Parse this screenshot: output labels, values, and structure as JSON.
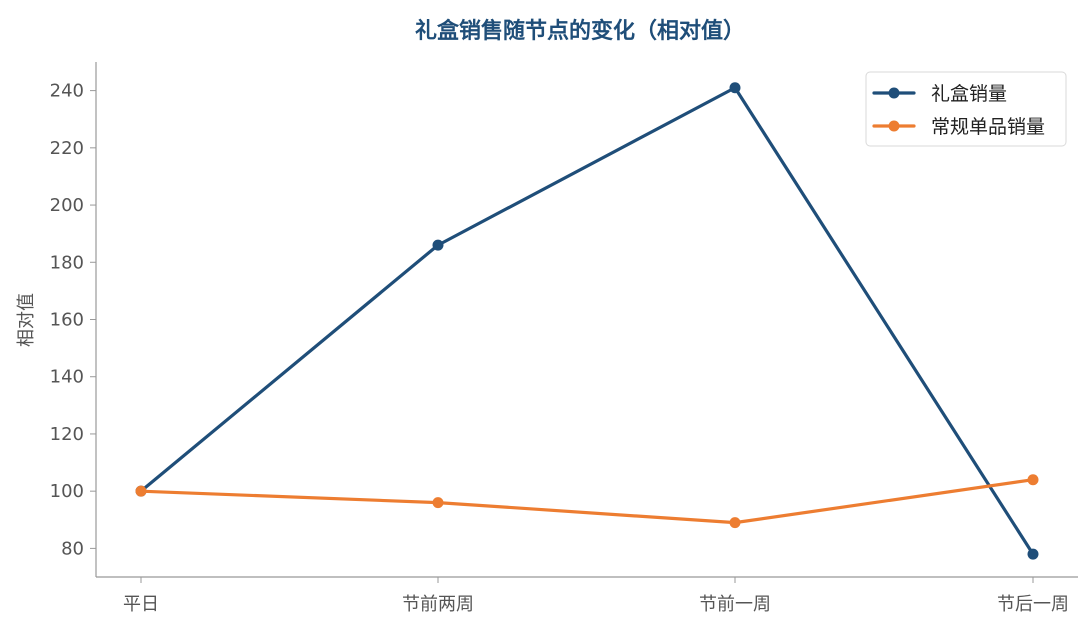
{
  "chart_data": {
    "type": "line",
    "title": "礼盒销售随节点的变化（相对值）",
    "xlabel": "",
    "ylabel": "相对值",
    "categories": [
      "平日",
      "节前两周",
      "节前一周",
      "节后一周"
    ],
    "series": [
      {
        "name": "礼盒销量",
        "values": [
          100,
          186,
          241,
          78
        ],
        "color": "#1f4e79"
      },
      {
        "name": "常规单品销量",
        "values": [
          100,
          96,
          89,
          104
        ],
        "color": "#ed7d31"
      }
    ],
    "ylim": [
      70,
      250
    ],
    "yticks": [
      80,
      100,
      120,
      140,
      160,
      180,
      200,
      220,
      240
    ],
    "grid": false,
    "legend_position": "top-right",
    "marker": "circle"
  }
}
